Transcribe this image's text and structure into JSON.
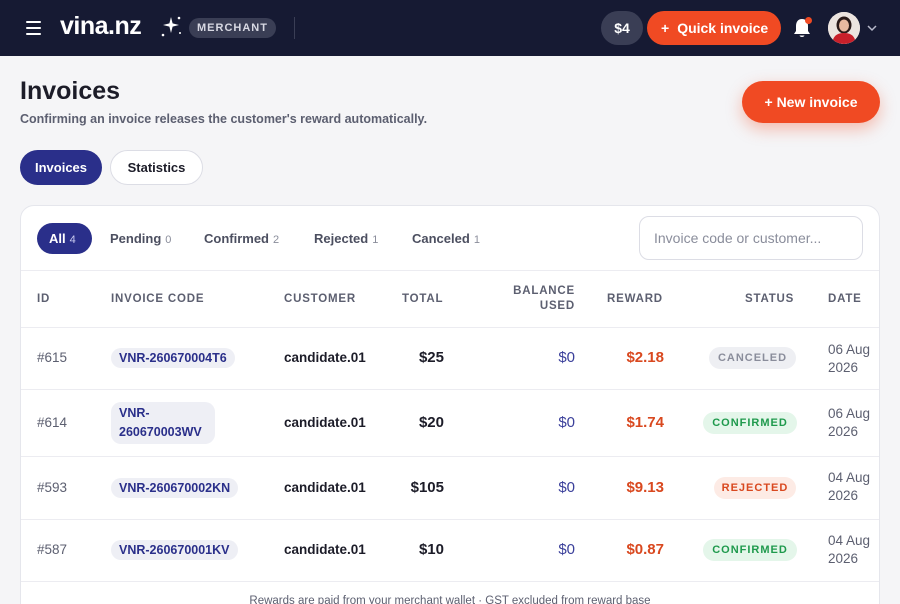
{
  "topbar": {
    "brand": "vina.nz",
    "badge": "MERCHANT",
    "wallet_balance": "$4",
    "quick_invoice_label": "Quick invoice",
    "quick_invoice_icon": "+",
    "accent_color": "#f04a23",
    "bar_color": "#161a33"
  },
  "header": {
    "title": "Invoices",
    "subtitle": "Confirming an invoice releases the customer's reward automatically.",
    "new_invoice_label": "+ New invoice"
  },
  "tabs": [
    {
      "label": "Invoices",
      "active": true
    },
    {
      "label": "Statistics",
      "active": false
    }
  ],
  "filters": [
    {
      "label": "All",
      "count": "4",
      "active": true
    },
    {
      "label": "Pending",
      "count": "0",
      "active": false
    },
    {
      "label": "Confirmed",
      "count": "2",
      "active": false
    },
    {
      "label": "Rejected",
      "count": "1",
      "active": false
    },
    {
      "label": "Canceled",
      "count": "1",
      "active": false
    }
  ],
  "search": {
    "placeholder": "Invoice code or customer...",
    "value": ""
  },
  "table": {
    "columns": [
      "ID",
      "INVOICE CODE",
      "CUSTOMER",
      "TOTAL",
      "BALANCE USED",
      "REWARD",
      "STATUS",
      "DATE"
    ],
    "balance_used_lines": [
      "BALANCE",
      "USED"
    ],
    "rows": [
      {
        "id": "#615",
        "code": "VNR-260670004T6",
        "customer": "candidate.01",
        "total": "$25",
        "balance_used": "$0",
        "reward": "$2.18",
        "status": "CANCELED",
        "date_line1": "06 Aug",
        "date_line2": "2026"
      },
      {
        "id": "#614",
        "code": "VNR-260670003WV",
        "code_line1": "VNR-",
        "code_line2": "260670003WV",
        "customer": "candidate.01",
        "total": "$20",
        "balance_used": "$0",
        "reward": "$1.74",
        "status": "CONFIRMED",
        "date_line1": "06 Aug",
        "date_line2": "2026"
      },
      {
        "id": "#593",
        "code": "VNR-260670002KN",
        "customer": "candidate.01",
        "total": "$105",
        "balance_used": "$0",
        "reward": "$9.13",
        "status": "REJECTED",
        "date_line1": "04 Aug",
        "date_line2": "2026"
      },
      {
        "id": "#587",
        "code": "VNR-260670001KV",
        "customer": "candidate.01",
        "total": "$10",
        "balance_used": "$0",
        "reward": "$0.87",
        "status": "CONFIRMED",
        "date_line1": "04 Aug",
        "date_line2": "2026"
      }
    ]
  },
  "footnote": "Rewards are paid from your merchant wallet · GST excluded from reward base",
  "icons": {
    "menu": "hamburger-menu-icon",
    "logo_stars": "sparkle-stars-icon",
    "notifications": "bell-icon",
    "account_menu": "chevron-down-icon"
  }
}
